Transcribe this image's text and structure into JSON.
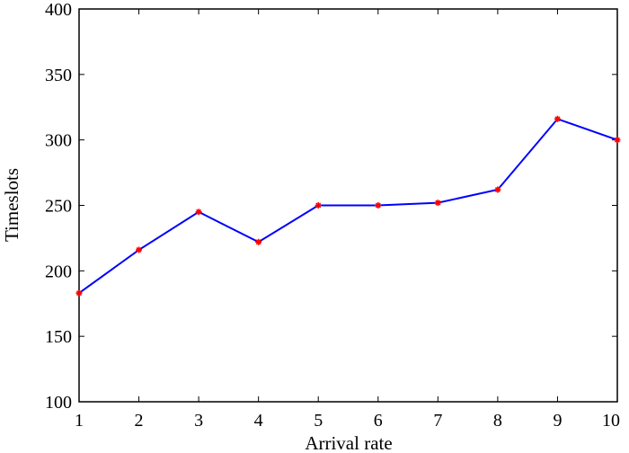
{
  "chart_data": {
    "type": "line",
    "title": "",
    "xlabel": "Arrival rate",
    "ylabel": "Timeslots",
    "xlim": [
      1,
      10
    ],
    "ylim": [
      100,
      400
    ],
    "xticks": [
      1,
      2,
      3,
      4,
      5,
      6,
      7,
      8,
      9,
      10
    ],
    "yticks": [
      100,
      150,
      200,
      250,
      300,
      350,
      400
    ],
    "grid": false,
    "legend": "none",
    "series": [
      {
        "x": [
          1,
          2,
          3,
          4,
          5,
          6,
          7,
          8,
          9,
          10
        ],
        "y": [
          183,
          216,
          245,
          222,
          250,
          250,
          252,
          262,
          316,
          300
        ],
        "line_color": "#0000ff",
        "marker": "*",
        "marker_color": "#ff0000"
      }
    ]
  }
}
